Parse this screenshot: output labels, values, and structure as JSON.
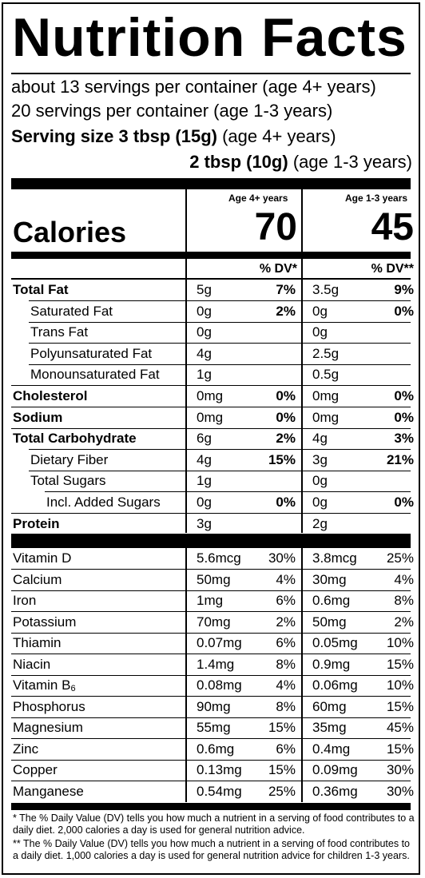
{
  "title": "Nutrition Facts",
  "servings": [
    "about 13 servings per container (age 4+ years)",
    "20 servings per container (age 1-3 years)"
  ],
  "serving_size": {
    "label": "Serving size",
    "amount_adult": "3 tbsp (15g)",
    "note_adult": "(age 4+ years)",
    "amount_child": "2 tbsp (10g)",
    "note_child": "(age 1-3 years)"
  },
  "columns": {
    "adult_header": "Age 4+ years",
    "child_header": "Age 1-3 years",
    "adult_dv": "% DV*",
    "child_dv": "% DV**"
  },
  "calories": {
    "label": "Calories",
    "adult": "70",
    "child": "45"
  },
  "nutrients": [
    {
      "name": "Total Fat",
      "bold": true,
      "indent": 0,
      "a1": "5g",
      "p1": "7%",
      "a2": "3.5g",
      "p2": "9%"
    },
    {
      "name": "Saturated Fat",
      "bold": false,
      "indent": 1,
      "a1": "0g",
      "p1": "2%",
      "a2": "0g",
      "p2": "0%"
    },
    {
      "name": "Trans Fat",
      "bold": false,
      "indent": 1,
      "a1": "0g",
      "p1": "",
      "a2": "0g",
      "p2": ""
    },
    {
      "name": "Polyunsaturated Fat",
      "bold": false,
      "indent": 1,
      "a1": "4g",
      "p1": "",
      "a2": "2.5g",
      "p2": ""
    },
    {
      "name": "Monounsaturated Fat",
      "bold": false,
      "indent": 1,
      "a1": "1g",
      "p1": "",
      "a2": "0.5g",
      "p2": ""
    },
    {
      "name": "Cholesterol",
      "bold": true,
      "indent": 0,
      "a1": "0mg",
      "p1": "0%",
      "a2": "0mg",
      "p2": "0%"
    },
    {
      "name": "Sodium",
      "bold": true,
      "indent": 0,
      "a1": "0mg",
      "p1": "0%",
      "a2": "0mg",
      "p2": "0%"
    },
    {
      "name": "Total Carbohydrate",
      "bold": true,
      "indent": 0,
      "a1": "6g",
      "p1": "2%",
      "a2": "4g",
      "p2": "3%"
    },
    {
      "name": "Dietary Fiber",
      "bold": false,
      "indent": 1,
      "a1": "4g",
      "p1": "15%",
      "a2": "3g",
      "p2": "21%"
    },
    {
      "name": "Total Sugars",
      "bold": false,
      "indent": 1,
      "a1": "1g",
      "p1": "",
      "a2": "0g",
      "p2": ""
    },
    {
      "name": "Incl. Added Sugars",
      "bold": false,
      "indent": 2,
      "a1": "0g",
      "p1": "0%",
      "a2": "0g",
      "p2": "0%"
    },
    {
      "name": "Protein",
      "bold": true,
      "indent": 0,
      "a1": "3g",
      "p1": "",
      "a2": "2g",
      "p2": ""
    }
  ],
  "vitamins": [
    {
      "name": "Vitamin D",
      "a1": "5.6mcg",
      "p1": "30%",
      "a2": "3.8mcg",
      "p2": "25%"
    },
    {
      "name": "Calcium",
      "a1": "50mg",
      "p1": "4%",
      "a2": "30mg",
      "p2": "4%"
    },
    {
      "name": "Iron",
      "a1": "1mg",
      "p1": "6%",
      "a2": "0.6mg",
      "p2": "8%"
    },
    {
      "name": "Potassium",
      "a1": "70mg",
      "p1": "2%",
      "a2": "50mg",
      "p2": "2%"
    },
    {
      "name": "Thiamin",
      "a1": "0.07mg",
      "p1": "6%",
      "a2": "0.05mg",
      "p2": "10%"
    },
    {
      "name": "Niacin",
      "a1": "1.4mg",
      "p1": "8%",
      "a2": "0.9mg",
      "p2": "15%"
    },
    {
      "name": "Vitamin B",
      "sub": "6",
      "a1": "0.08mg",
      "p1": "4%",
      "a2": "0.06mg",
      "p2": "10%"
    },
    {
      "name": "Phosphorus",
      "a1": "90mg",
      "p1": "8%",
      "a2": "60mg",
      "p2": "15%"
    },
    {
      "name": "Magnesium",
      "a1": "55mg",
      "p1": "15%",
      "a2": "35mg",
      "p2": "45%"
    },
    {
      "name": "Zinc",
      "a1": "0.6mg",
      "p1": "6%",
      "a2": "0.4mg",
      "p2": "15%"
    },
    {
      "name": "Copper",
      "a1": "0.13mg",
      "p1": "15%",
      "a2": "0.09mg",
      "p2": "30%"
    },
    {
      "name": "Manganese",
      "a1": "0.54mg",
      "p1": "25%",
      "a2": "0.36mg",
      "p2": "30%"
    }
  ],
  "footnotes": [
    "* The % Daily Value (DV) tells you how much a nutrient in a serving of food contributes to a daily diet. 2,000 calories a day is used for general nutrition advice.",
    "** The % Daily Value (DV) tells you how much a nutrient in a serving of food contributes to a daily diet. 1,000 calories a day is used for general nutrition advice for children 1-3 years."
  ]
}
